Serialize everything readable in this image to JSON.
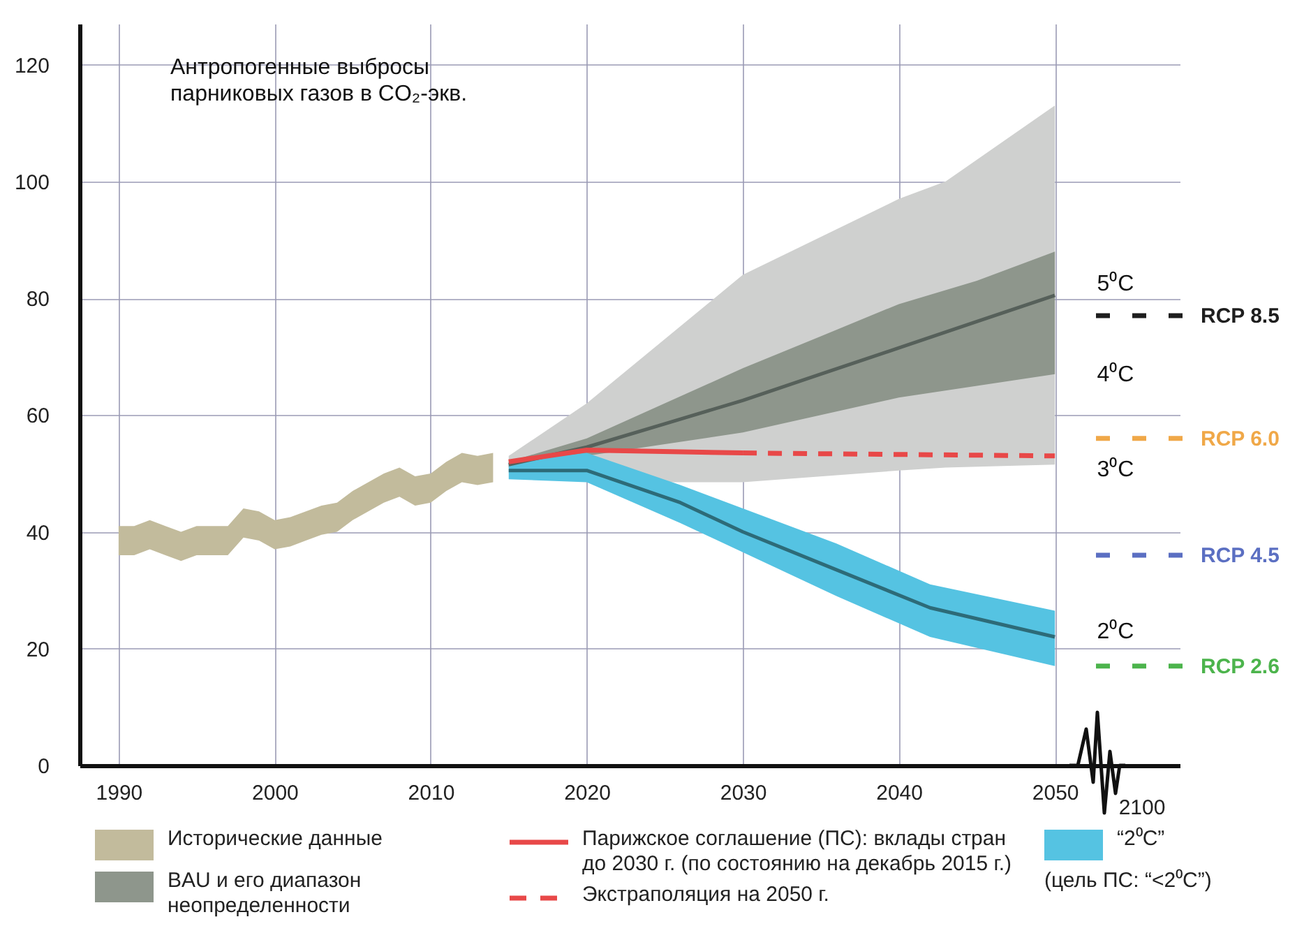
{
  "chart_data": {
    "type": "line",
    "title": "Антропогенные выбросы\nпарниковых газов в CO₂-экв.",
    "xlim": [
      1987.5,
      2058
    ],
    "xticks": [
      1990,
      2000,
      2010,
      2020,
      2030,
      2040,
      2050
    ],
    "ylim": [
      0,
      127
    ],
    "yticks": [
      0,
      20,
      40,
      60,
      80,
      100,
      120
    ],
    "grid": true,
    "legend": "bottom",
    "series": [
      {
        "name": "Исторические данные",
        "color": "#c2bb9c",
        "x": [
          1990,
          1991,
          1992,
          1993,
          1994,
          1995,
          1996,
          1997,
          1998,
          1999,
          2000,
          2001,
          2002,
          2003,
          2004,
          2005,
          2006,
          2007,
          2008,
          2009,
          2010,
          2011,
          2012,
          2013,
          2014
        ],
        "values": [
          null,
          null,
          null,
          null,
          null,
          null,
          null,
          null,
          null,
          null,
          null,
          null,
          null,
          null,
          null,
          null,
          null,
          null,
          null,
          null,
          null,
          null,
          null,
          null,
          null
        ],
        "lower": [
          36,
          36,
          37,
          36,
          35,
          36,
          36,
          36,
          39,
          38.5,
          37,
          37.5,
          38.5,
          39.5,
          40,
          42,
          43.5,
          45,
          46,
          44.5,
          45,
          47,
          48.5,
          48,
          48.5
        ],
        "upper": [
          41,
          41,
          42,
          41,
          40,
          41,
          41,
          41,
          44,
          43.5,
          42,
          42.5,
          43.5,
          44.5,
          45,
          47,
          48.5,
          50,
          51,
          49.5,
          50,
          52,
          53.5,
          53,
          53.5
        ]
      },
      {
        "color": "#cfd0cf",
        "x": [
          2015,
          2020,
          2030,
          2040,
          2043,
          2050
        ],
        "values": [
          null,
          null,
          null,
          null,
          null,
          null
        ],
        "lower": [
          51,
          48.5,
          48.5,
          50.5,
          51,
          51.5
        ],
        "upper": [
          53,
          62,
          84,
          97,
          100,
          113
        ]
      },
      {
        "name": "BAU и его диапазон неопределенности",
        "color": "#8e968c",
        "x": [
          2015,
          2020,
          2025,
          2030,
          2035,
          2040,
          2045,
          2050
        ],
        "values": [
          null,
          null,
          null,
          null,
          null,
          null,
          null,
          null
        ],
        "lower": [
          51,
          53,
          55,
          57,
          60,
          63,
          65,
          67
        ],
        "upper": [
          52,
          56,
          62,
          68,
          73.5,
          79,
          83,
          88
        ]
      },
      {
        "color": "#56605a",
        "x": [
          2015,
          2020,
          2025,
          2030,
          2035,
          2040,
          2045,
          2050
        ],
        "values": [
          51.5,
          54.5,
          58.5,
          62.5,
          67,
          71.5,
          76,
          80.5
        ]
      },
      {
        "name": "Парижское соглашение (ПС): вклады стран до 2030 г. (по состоянию на декабрь 2015 г.)",
        "color": "#e84848",
        "x": [
          2015,
          2020,
          2030
        ],
        "values": [
          52,
          54,
          53.5
        ]
      },
      {
        "name": "Экстраполяция на 2050 г.",
        "color": "#e84848",
        "line_style": "dashed",
        "x": [
          2030,
          2050
        ],
        "values": [
          53.5,
          53
        ]
      },
      {
        "name": "“2⁰C”",
        "color": "#55c3e2",
        "x": [
          2015,
          2020,
          2026,
          2030,
          2036,
          2042,
          2050
        ],
        "values": [
          null,
          null,
          null,
          null,
          null,
          null,
          null
        ],
        "lower": [
          49,
          48.5,
          41.5,
          36.5,
          29,
          22,
          17
        ],
        "upper": [
          52,
          53.5,
          48,
          44,
          38,
          31,
          26.5
        ]
      },
      {
        "color": "#2d6b78",
        "x": [
          2015,
          2020,
          2026,
          2030,
          2036,
          2042,
          2050
        ],
        "values": [
          50.5,
          50.5,
          45,
          40,
          33.5,
          27,
          22
        ]
      }
    ],
    "ref_lines": [
      {
        "axis": "y",
        "value": 77,
        "label": "RCP 8.5",
        "color": "#1e1e1e",
        "line_style": "dashed"
      },
      {
        "axis": "y",
        "value": 56,
        "label": "RCP 6.0",
        "color": "#f0a848",
        "line_style": "dashed"
      },
      {
        "axis": "y",
        "value": 36,
        "label": "RCP 4.5",
        "color": "#5b6fc2",
        "line_style": "dashed"
      },
      {
        "axis": "y",
        "value": 17,
        "label": "RCP 2.6",
        "color": "#4cb44c",
        "line_style": "dashed"
      }
    ],
    "annotations": [
      "2100",
      "5⁰C",
      "4⁰C",
      "3⁰C",
      "2⁰C",
      "(цель ПС: “<2⁰C”)"
    ]
  }
}
